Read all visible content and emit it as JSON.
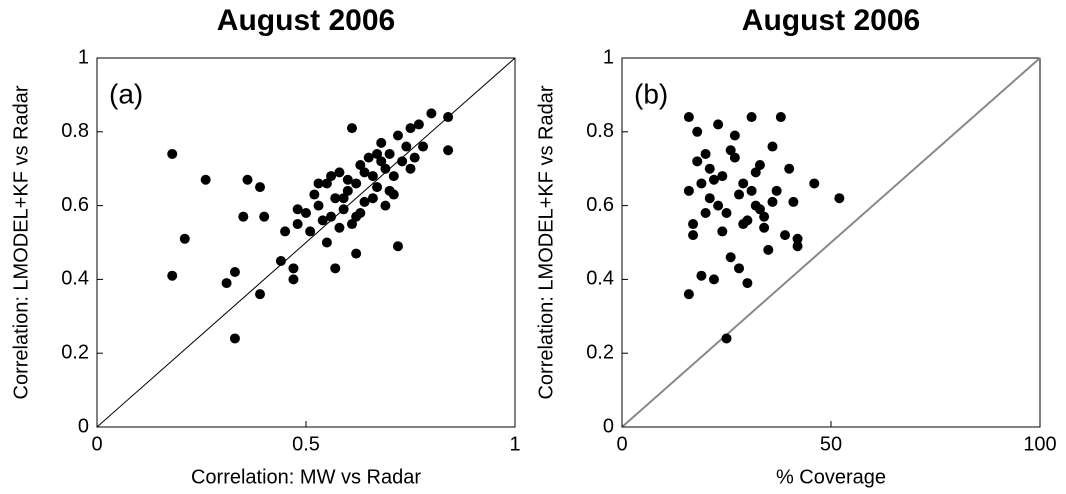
{
  "chart_data": [
    {
      "type": "scatter",
      "title": "August 2006",
      "annotation": "(a)",
      "xlabel": "Correlation: MW vs Radar",
      "ylabel": "Correlation: LMODEL+KF vs Radar",
      "color": "#000000",
      "xlim": [
        0,
        1
      ],
      "ylim": [
        0,
        1
      ],
      "xticks": [
        0,
        0.5,
        1
      ],
      "yticks": [
        0,
        0.2,
        0.4,
        0.6,
        0.8,
        1
      ],
      "x": [
        0.18,
        0.18,
        0.21,
        0.26,
        0.33,
        0.31,
        0.33,
        0.39,
        0.36,
        0.35,
        0.39,
        0.4,
        0.44,
        0.47,
        0.47,
        0.72,
        0.84,
        0.84,
        0.8,
        0.78,
        0.57,
        0.62,
        0.45,
        0.48,
        0.5,
        0.52,
        0.53,
        0.55,
        0.56,
        0.57,
        0.58,
        0.59,
        0.6,
        0.61,
        0.62,
        0.63,
        0.64,
        0.65,
        0.66,
        0.67,
        0.68,
        0.69,
        0.7,
        0.71,
        0.72,
        0.73,
        0.74,
        0.75,
        0.76,
        0.77,
        0.48,
        0.51,
        0.54,
        0.56,
        0.58,
        0.6,
        0.62,
        0.64,
        0.66,
        0.68,
        0.7,
        0.55,
        0.59,
        0.63,
        0.67,
        0.71,
        0.75,
        0.53,
        0.61,
        0.69
      ],
      "y": [
        0.74,
        0.41,
        0.51,
        0.67,
        0.24,
        0.39,
        0.42,
        0.36,
        0.67,
        0.57,
        0.65,
        0.57,
        0.45,
        0.43,
        0.4,
        0.49,
        0.84,
        0.75,
        0.85,
        0.76,
        0.43,
        0.47,
        0.53,
        0.55,
        0.58,
        0.63,
        0.6,
        0.66,
        0.57,
        0.62,
        0.69,
        0.59,
        0.64,
        0.81,
        0.66,
        0.71,
        0.61,
        0.73,
        0.68,
        0.65,
        0.77,
        0.7,
        0.74,
        0.68,
        0.79,
        0.72,
        0.76,
        0.81,
        0.73,
        0.82,
        0.59,
        0.53,
        0.56,
        0.68,
        0.54,
        0.67,
        0.57,
        0.69,
        0.62,
        0.72,
        0.64,
        0.5,
        0.62,
        0.58,
        0.74,
        0.63,
        0.7,
        0.66,
        0.55,
        0.6
      ]
    },
    {
      "type": "scatter",
      "title": "August 2006",
      "annotation": "(b)",
      "xlabel": "% Coverage",
      "ylabel": "Correlation: LMODEL+KF vs Radar",
      "color": "#000000",
      "xlim": [
        0,
        100
      ],
      "ylim": [
        0,
        1
      ],
      "xticks": [
        0,
        50,
        100
      ],
      "yticks": [
        0,
        0.2,
        0.4,
        0.6,
        0.8,
        1
      ],
      "x": [
        16,
        16,
        17,
        18,
        19,
        20,
        21,
        22,
        23,
        24,
        25,
        25,
        26,
        27,
        28,
        29,
        30,
        31,
        32,
        33,
        34,
        35,
        36,
        37,
        38,
        39,
        40,
        41,
        42,
        42,
        46,
        52,
        16,
        18,
        20,
        22,
        24,
        26,
        28,
        30,
        32,
        34,
        36,
        17,
        19,
        21,
        23,
        27,
        29,
        31,
        33
      ],
      "y": [
        0.36,
        0.84,
        0.55,
        0.8,
        0.41,
        0.74,
        0.62,
        0.4,
        0.82,
        0.68,
        0.24,
        0.58,
        0.46,
        0.79,
        0.43,
        0.66,
        0.39,
        0.84,
        0.6,
        0.71,
        0.57,
        0.48,
        0.76,
        0.64,
        0.84,
        0.52,
        0.7,
        0.61,
        0.49,
        0.51,
        0.66,
        0.62,
        0.64,
        0.72,
        0.58,
        0.67,
        0.53,
        0.75,
        0.63,
        0.56,
        0.69,
        0.54,
        0.61,
        0.52,
        0.66,
        0.7,
        0.6,
        0.73,
        0.55,
        0.64,
        0.59
      ]
    }
  ]
}
